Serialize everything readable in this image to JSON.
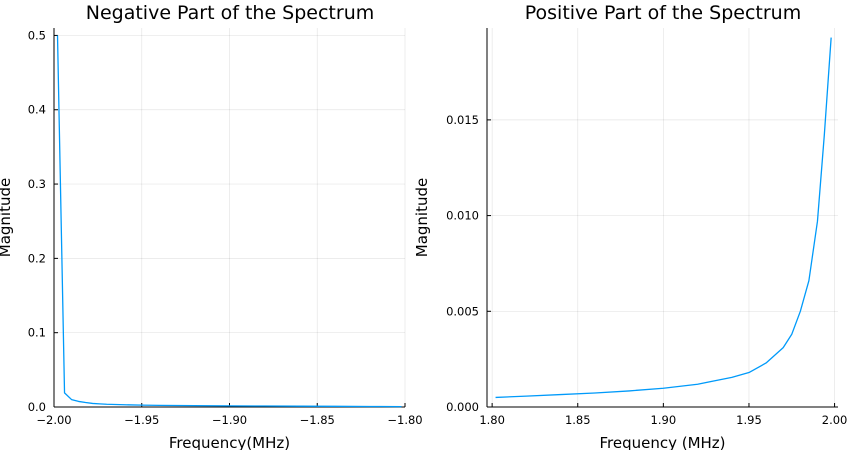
{
  "chart_data": [
    {
      "type": "line",
      "title": "Negative Part of the Spectrum",
      "xlabel": "Frequency(MHz)",
      "ylabel": "Magnitude",
      "xlim": [
        -2.0,
        -1.8
      ],
      "ylim": [
        0,
        0.51
      ],
      "xticks": [
        -2.0,
        -1.95,
        -1.9,
        -1.85,
        -1.8
      ],
      "xtick_labels": [
        "−2.00",
        "−1.95",
        "−1.90",
        "−1.85",
        "−1.80"
      ],
      "yticks": [
        0,
        0.1,
        0.2,
        0.3,
        0.4,
        0.5
      ],
      "ytick_labels": [
        "0.0",
        "0.1",
        "0.2",
        "0.3",
        "0.4",
        "0.5"
      ],
      "grid": true,
      "color": "#009AFA",
      "series": [
        {
          "x": [
            -1.998,
            -1.994,
            -1.99,
            -1.986,
            -1.982,
            -1.978,
            -1.974,
            -1.97,
            -1.96,
            -1.95,
            -1.94,
            -1.92,
            -1.9,
            -1.88,
            -1.86,
            -1.84,
            -1.82,
            -1.802
          ],
          "y": [
            0.5,
            0.019,
            0.01,
            0.0075,
            0.006,
            0.0048,
            0.0042,
            0.0037,
            0.003,
            0.0025,
            0.0022,
            0.0018,
            0.0015,
            0.0013,
            0.0011,
            0.0009,
            0.0007,
            0.0005
          ]
        }
      ]
    },
    {
      "type": "line",
      "title": "Positive Part of the Spectrum",
      "xlabel": "Frequency (MHz)",
      "ylabel": "Magnitude",
      "xlim": [
        1.797,
        2.002
      ],
      "ylim": [
        0,
        0.0198
      ],
      "xticks": [
        1.8,
        1.85,
        1.9,
        1.95,
        2.0
      ],
      "xtick_labels": [
        "1.80",
        "1.85",
        "1.90",
        "1.95",
        "2.00"
      ],
      "yticks": [
        0,
        0.005,
        0.01,
        0.015
      ],
      "ytick_labels": [
        "0.000",
        "0.005",
        "0.010",
        "0.015"
      ],
      "grid": true,
      "color": "#009AFA",
      "series": [
        {
          "x": [
            1.802,
            1.82,
            1.84,
            1.86,
            1.88,
            1.9,
            1.92,
            1.94,
            1.95,
            1.96,
            1.97,
            1.975,
            1.98,
            1.985,
            1.99,
            1.994,
            1.998
          ],
          "y": [
            0.0005,
            0.00057,
            0.00065,
            0.00073,
            0.00084,
            0.00098,
            0.00119,
            0.00155,
            0.0018,
            0.0023,
            0.0031,
            0.0038,
            0.005,
            0.0066,
            0.0097,
            0.0142,
            0.0193
          ]
        }
      ]
    }
  ]
}
